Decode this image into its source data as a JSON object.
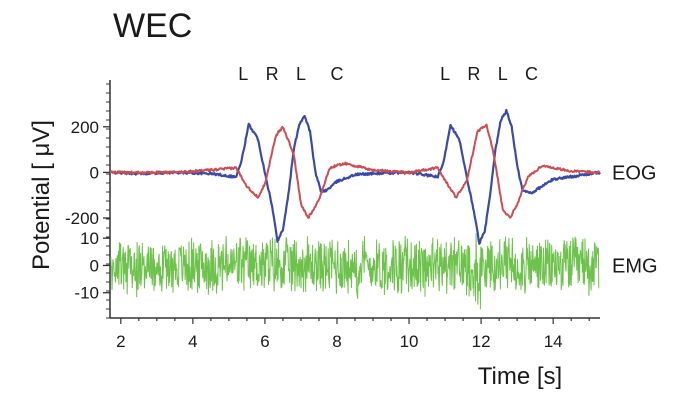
{
  "chart_data": {
    "type": "line",
    "title": "WEC",
    "xlabel": "Time [s]",
    "ylabel": "Potential [ μV]",
    "xlim": [
      1.7,
      15.3
    ],
    "x_ticks": [
      2,
      4,
      6,
      8,
      10,
      12,
      14
    ],
    "x_tick_labels": [
      "2",
      "4",
      "6",
      "8",
      "10",
      "12",
      "14"
    ],
    "grid": false,
    "panels": [
      {
        "label": "EOG",
        "ylim": [
          -200,
          300
        ],
        "y_ticks": [
          200,
          0,
          -200
        ],
        "y_tick_labels": [
          "200",
          "0",
          "-200"
        ],
        "series": [
          {
            "color": "#3a4aa8",
            "x": [
              1.7,
              2.5,
              3.5,
              4.5,
              5.2,
              5.35,
              5.55,
              5.8,
              6.0,
              6.2,
              6.35,
              6.5,
              6.65,
              6.8,
              6.95,
              7.1,
              7.25,
              7.4,
              7.55,
              7.7,
              8.0,
              8.5,
              9.0,
              10.0,
              10.8,
              10.95,
              11.15,
              11.4,
              11.6,
              11.8,
              11.95,
              12.1,
              12.25,
              12.4,
              12.55,
              12.7,
              12.85,
              13.0,
              13.15,
              13.4,
              14.0,
              15.3
            ],
            "y": [
              0,
              -5,
              0,
              -5,
              -20,
              50,
              210,
              150,
              0,
              -150,
              -300,
              -250,
              -100,
              100,
              210,
              250,
              180,
              0,
              -80,
              -80,
              -40,
              -10,
              -5,
              0,
              -20,
              40,
              210,
              140,
              -20,
              -170,
              -310,
              -260,
              -100,
              100,
              230,
              270,
              200,
              30,
              -80,
              -90,
              -30,
              0
            ]
          },
          {
            "color": "#c94f54",
            "x": [
              1.7,
              3.5,
              4.5,
              5.2,
              5.5,
              5.8,
              6.0,
              6.3,
              6.5,
              6.8,
              7.0,
              7.2,
              7.5,
              7.8,
              8.2,
              9.0,
              10.0,
              10.8,
              11.1,
              11.3,
              11.6,
              11.9,
              12.15,
              12.35,
              12.6,
              12.8,
              13.0,
              13.3,
              13.7,
              14.5,
              15.3
            ],
            "y": [
              0,
              0,
              10,
              20,
              -60,
              -110,
              -50,
              160,
              200,
              80,
              -140,
              -200,
              -120,
              20,
              40,
              10,
              0,
              20,
              -60,
              -110,
              -40,
              180,
              210,
              80,
              -160,
              -200,
              -140,
              -20,
              30,
              5,
              0
            ]
          }
        ]
      },
      {
        "label": "EMG",
        "ylim": [
          -20,
          13
        ],
        "y_ticks": [
          10,
          0,
          -10
        ],
        "y_tick_labels": [
          "10",
          "0",
          "-10"
        ],
        "series": [
          {
            "color": "#6cc24a",
            "description": "noise-like EMG, amplitude about ±10 μV with transient spikes near 11.9 s"
          }
        ]
      }
    ],
    "annotations": [
      {
        "text": "L",
        "x": 5.4
      },
      {
        "text": "R",
        "x": 6.2
      },
      {
        "text": "L",
        "x": 7.0
      },
      {
        "text": "C",
        "x": 8.0
      },
      {
        "text": "L",
        "x": 11.0
      },
      {
        "text": "R",
        "x": 11.8
      },
      {
        "text": "L",
        "x": 12.6
      },
      {
        "text": "C",
        "x": 13.4
      }
    ]
  }
}
